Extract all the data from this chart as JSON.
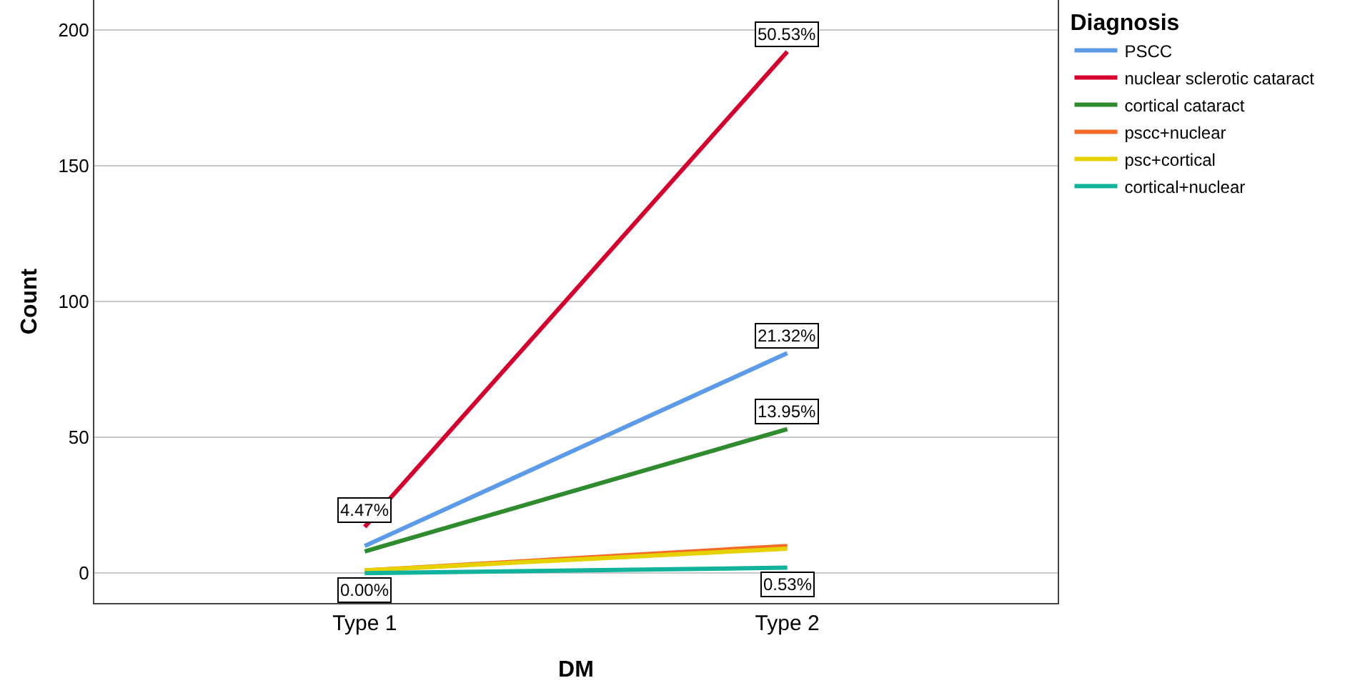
{
  "chart_data": {
    "type": "line",
    "xlabel": "DM",
    "ylabel": "Count",
    "legend_title": "Diagnosis",
    "categories": [
      "Type 1",
      "Type 2"
    ],
    "series": [
      {
        "name": "PSCC",
        "color": "#5b9bea",
        "values": [
          10,
          81
        ]
      },
      {
        "name": "nuclear sclerotic cataract",
        "color": "#d6002e",
        "values": [
          17,
          192
        ]
      },
      {
        "name": "cortical cataract",
        "color": "#2e8b2e",
        "values": [
          8,
          53
        ]
      },
      {
        "name": "pscc+nuclear",
        "color": "#f26c28",
        "values": [
          1,
          10
        ]
      },
      {
        "name": "psc+cortical",
        "color": "#e6d200",
        "values": [
          1,
          9
        ]
      },
      {
        "name": "cortical+nuclear",
        "color": "#12b39c",
        "values": [
          0,
          2
        ]
      }
    ],
    "annotations": [
      {
        "text": "4.47%",
        "x": "Type 1",
        "y": 17
      },
      {
        "text": "0.00%",
        "x": "Type 1",
        "y": 0
      },
      {
        "text": "50.53%",
        "x": "Type 2",
        "y": 192
      },
      {
        "text": "21.32%",
        "x": "Type 2",
        "y": 81
      },
      {
        "text": "13.95%",
        "x": "Type 2",
        "y": 53
      },
      {
        "text": "0.53%",
        "x": "Type 2",
        "y": 2
      }
    ],
    "ylim": [
      -11,
      211
    ],
    "yticks": [
      0,
      50,
      100,
      150,
      200
    ],
    "grid": "y",
    "legend": "top right",
    "marker": "none",
    "line_style": "solid"
  }
}
